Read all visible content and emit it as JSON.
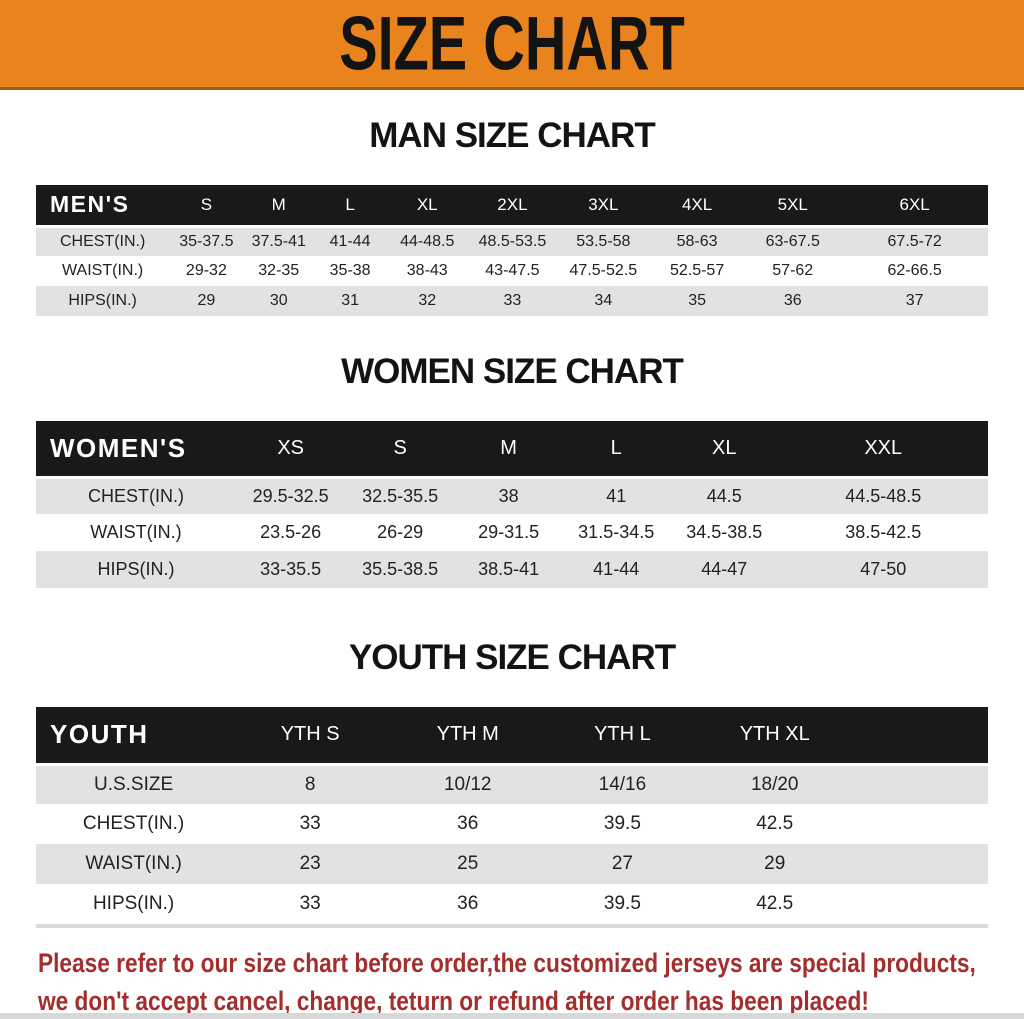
{
  "banner": {
    "title": "SIZE CHART"
  },
  "colors": {
    "banner_bg": "#E8831E",
    "table_header_bg": "#191919",
    "row_alt_bg": "#e2e2e2",
    "disclaimer_text": "#A32E2E"
  },
  "sections": [
    {
      "title": "MAN SIZE CHART",
      "label": "MEN'S",
      "columns": [
        "S",
        "M",
        "L",
        "XL",
        "2XL",
        "3XL",
        "4XL",
        "5XL",
        "6XL"
      ],
      "rows": [
        {
          "label": "CHEST(IN.)",
          "values": [
            "35-37.5",
            "37.5-41",
            "41-44",
            "44-48.5",
            "48.5-53.5",
            "53.5-58",
            "58-63",
            "63-67.5",
            "67.5-72"
          ]
        },
        {
          "label": "WAIST(IN.)",
          "values": [
            "29-32",
            "32-35",
            "35-38",
            "38-43",
            "43-47.5",
            "47.5-52.5",
            "52.5-57",
            "57-62",
            "62-66.5"
          ]
        },
        {
          "label": "HIPS(IN.)",
          "values": [
            "29",
            "30",
            "31",
            "32",
            "33",
            "34",
            "35",
            "36",
            "37"
          ]
        }
      ]
    },
    {
      "title": "WOMEN SIZE CHART",
      "label": "WOMEN'S",
      "columns": [
        "XS",
        "S",
        "M",
        "L",
        "XL",
        "XXL"
      ],
      "rows": [
        {
          "label": "CHEST(IN.)",
          "values": [
            "29.5-32.5",
            "32.5-35.5",
            "38",
            "41",
            "44.5",
            "44.5-48.5"
          ]
        },
        {
          "label": "WAIST(IN.)",
          "values": [
            "23.5-26",
            "26-29",
            "29-31.5",
            "31.5-34.5",
            "34.5-38.5",
            "38.5-42.5"
          ]
        },
        {
          "label": "HIPS(IN.)",
          "values": [
            "33-35.5",
            "35.5-38.5",
            "38.5-41",
            "41-44",
            "44-47",
            "47-50"
          ]
        }
      ]
    },
    {
      "title": "YOUTH SIZE CHART",
      "label": "YOUTH",
      "columns": [
        "YTH S",
        "YTH M",
        "YTH L",
        "YTH XL"
      ],
      "rows": [
        {
          "label": "U.S.SIZE",
          "values": [
            "8",
            "10/12",
            "14/16",
            "18/20"
          ]
        },
        {
          "label": "CHEST(IN.)",
          "values": [
            "33",
            "36",
            "39.5",
            "42.5"
          ]
        },
        {
          "label": "WAIST(IN.)",
          "values": [
            "23",
            "25",
            "27",
            "29"
          ]
        },
        {
          "label": "HIPS(IN.)",
          "values": [
            "33",
            "36",
            "39.5",
            "42.5"
          ]
        }
      ]
    }
  ],
  "disclaimer": {
    "line1": "Please refer to our size chart before order,the customized jerseys are special products,",
    "line2": "we don't accept cancel, change, teturn or refund after order has been placed!"
  }
}
